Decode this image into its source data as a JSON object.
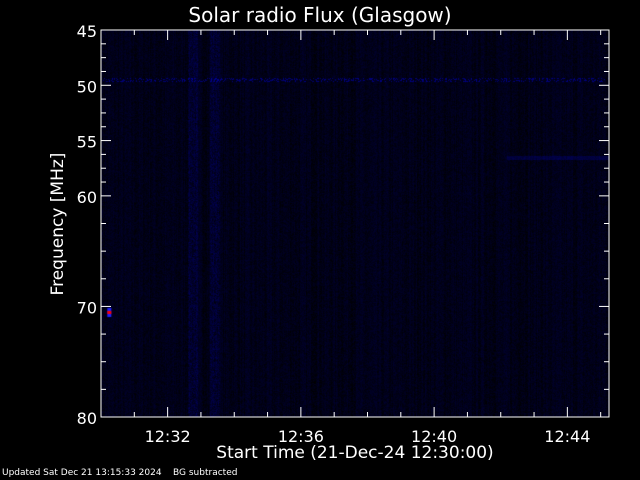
{
  "chart_data": {
    "type": "heatmap",
    "title": "Solar radio Flux (Glasgow)",
    "xlabel": "Start Time (21-Dec-24 12:30:00)",
    "ylabel": "Frequency [MHz]",
    "x_range": [
      "12:30:00",
      "12:45:15"
    ],
    "x_ticks": [
      "12:32",
      "12:36",
      "12:40",
      "12:44"
    ],
    "y_range": [
      45,
      80
    ],
    "y_ticks": [
      "45",
      "50",
      "55",
      "60",
      "70",
      "80"
    ],
    "y_inverted": true,
    "colors": {
      "background": "#000000",
      "low": "#000010",
      "mid": "#1a1a8c",
      "high": "#ff0000"
    },
    "enhanced_time_columns": [
      "12:32:45",
      "12:33:25"
    ],
    "interference_band_mhz": 49.5,
    "hot_spot": {
      "time": "12:30:15",
      "frequency_mhz": 70.5
    }
  },
  "footer": {
    "updated": "Updated Sat Dec 21 13:15:33 2024",
    "note": "BG subtracted"
  }
}
